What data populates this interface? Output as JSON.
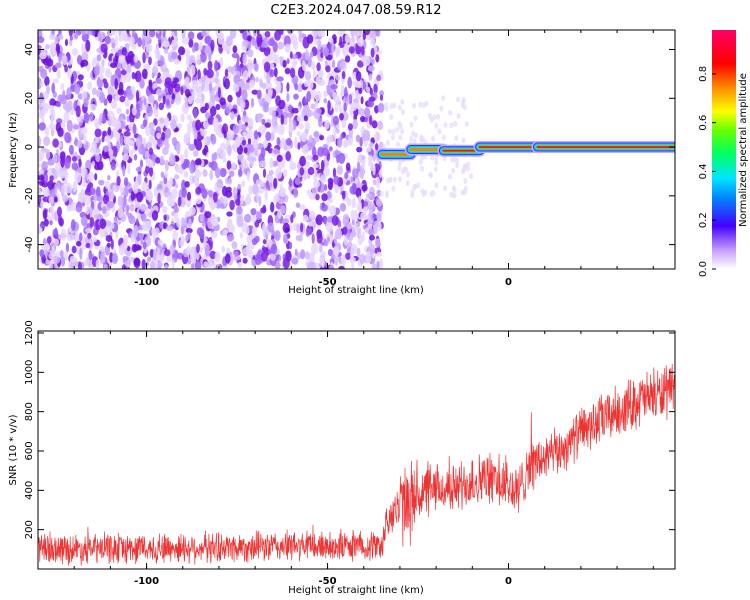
{
  "title": "C2E3.2024.047.08.59.R12",
  "colors": {
    "signal": "#ee3333",
    "noise_purple": "#7b1fe8",
    "axis": "#000000"
  },
  "chart_data": [
    {
      "type": "heatmap",
      "xlabel": "Height of straight line (km)",
      "ylabel": "Frequency (Hz)",
      "xlim": [
        -130,
        46
      ],
      "ylim": [
        -50,
        48
      ],
      "x_ticks": [
        {
          "value": -100,
          "label": "-100"
        },
        {
          "value": -50,
          "label": "-50"
        },
        {
          "value": 0,
          "label": "0"
        }
      ],
      "y_ticks": [
        {
          "value": -40,
          "label": "-40"
        },
        {
          "value": -20,
          "label": "-20"
        },
        {
          "value": 0,
          "label": "0"
        },
        {
          "value": 20,
          "label": "20"
        },
        {
          "value": 40,
          "label": "40"
        }
      ],
      "noise_region_x": [
        -130,
        -35
      ],
      "line_segments": [
        {
          "x0": -35,
          "x1": -27,
          "y": -3,
          "amplitude": 0.75
        },
        {
          "x0": -27,
          "x1": -18,
          "y": -1,
          "amplitude": 0.75
        },
        {
          "x0": -18,
          "x1": -8,
          "y": -1.5,
          "amplitude": 0.8
        },
        {
          "x0": -8,
          "x1": 8,
          "y": 0,
          "amplitude": 0.85
        },
        {
          "x0": 8,
          "x1": 46,
          "y": 0,
          "amplitude": 0.9
        }
      ],
      "colorbar": {
        "label": "Normalized spectral amplitude",
        "range": [
          0,
          0.98
        ],
        "ticks": [
          {
            "value": 0.0,
            "label": "0.0"
          },
          {
            "value": 0.2,
            "label": "0.2"
          },
          {
            "value": 0.4,
            "label": "0.4"
          },
          {
            "value": 0.6,
            "label": "0.6"
          },
          {
            "value": 0.8,
            "label": "0.8"
          }
        ]
      }
    },
    {
      "type": "line",
      "xlabel": "Height of straight line (km)",
      "ylabel": "SNR (10 * v/v)",
      "xlim": [
        -130,
        46
      ],
      "ylim": [
        0,
        1210
      ],
      "x_ticks": [
        {
          "value": -100,
          "label": "-100"
        },
        {
          "value": -50,
          "label": "-50"
        },
        {
          "value": 0,
          "label": "0"
        }
      ],
      "y_ticks": [
        {
          "value": 200,
          "label": "200"
        },
        {
          "value": 400,
          "label": "400"
        },
        {
          "value": 600,
          "label": "600"
        },
        {
          "value": 800,
          "label": "800"
        },
        {
          "value": 1000,
          "label": "1000"
        },
        {
          "value": 1200,
          "label": "1200"
        }
      ],
      "envelope": {
        "x": [
          -130,
          -100,
          -80,
          -60,
          -35,
          -33,
          -28,
          -25,
          -20,
          -15,
          -10,
          -5,
          0,
          3,
          5,
          10,
          15,
          20,
          25,
          30,
          35,
          40,
          46
        ],
        "base": [
          100,
          105,
          110,
          115,
          120,
          280,
          330,
          380,
          400,
          410,
          450,
          460,
          420,
          380,
          520,
          560,
          610,
          700,
          750,
          800,
          850,
          880,
          900
        ],
        "spread": [
          90,
          90,
          90,
          90,
          90,
          110,
          260,
          180,
          130,
          140,
          160,
          150,
          160,
          170,
          160,
          140,
          140,
          140,
          150,
          150,
          160,
          160,
          150
        ]
      }
    }
  ]
}
